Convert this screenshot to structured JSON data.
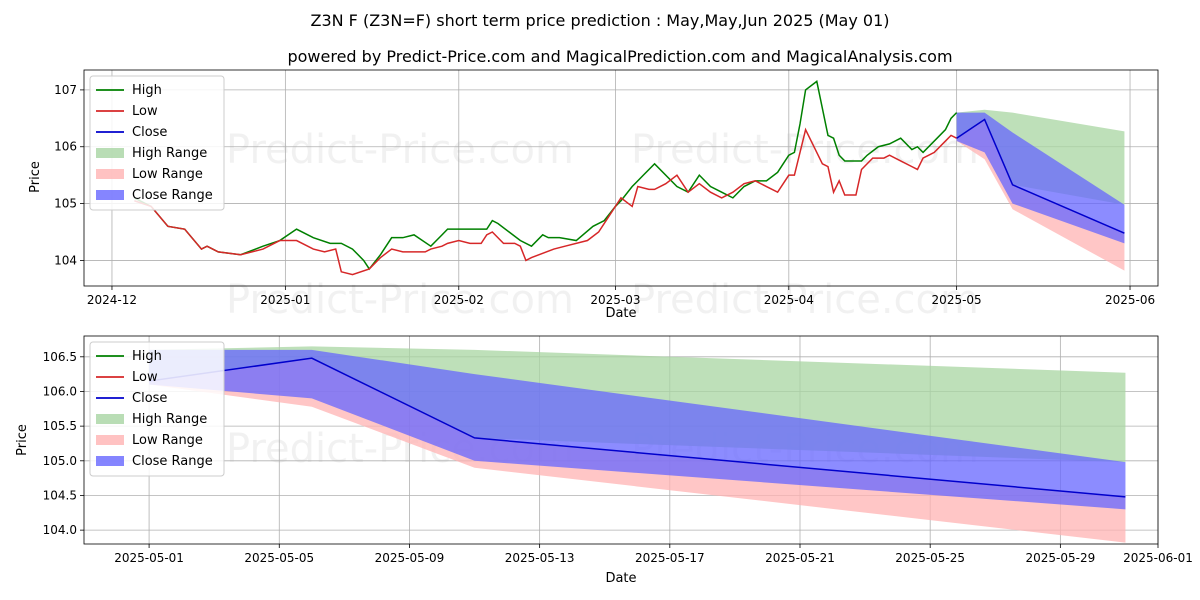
{
  "title": "Z3N F (Z3N=F) short term price prediction : May,May,Jun 2025 (May 01)",
  "subtitle": "powered by Predict-Price.com and MagicalPrediction.com and MagicalAnalysis.com",
  "watermark": "Predict-Price.com",
  "colors": {
    "high": "#008000",
    "low": "#d62728",
    "close": "#0000cc",
    "high_range": "#a8d5a2",
    "low_range": "#ffb3b3",
    "close_range": "#6666ff"
  },
  "chart_data": [
    {
      "type": "line",
      "xlabel": "Date",
      "ylabel": "Price",
      "xlim": [
        "2024-11-26",
        "2025-06-06"
      ],
      "ylim": [
        103.55,
        107.35
      ],
      "x_ticks": [
        "2024-12-01",
        "2025-01-01",
        "2025-02-01",
        "2025-03-01",
        "2025-04-01",
        "2025-05-01",
        "2025-06-01"
      ],
      "x_tick_labels": [
        "2024-12",
        "2025-01",
        "2025-02",
        "2025-03",
        "2025-04",
        "2025-05",
        "2025-06"
      ],
      "y_ticks": [
        104,
        105,
        106,
        107
      ],
      "y_tick_labels": [
        "104",
        "105",
        "106",
        "107"
      ],
      "grid": true,
      "legend_position": "top-left",
      "legend": [
        "High",
        "Low",
        "Close",
        "High Range",
        "Low Range",
        "Close Range"
      ],
      "series": [
        {
          "name": "High",
          "x": [
            "2024-12-05",
            "2024-12-08",
            "2024-12-11",
            "2024-12-14",
            "2024-12-17",
            "2024-12-18",
            "2024-12-19",
            "2024-12-20",
            "2024-12-24",
            "2024-12-28",
            "2024-12-31",
            "2025-01-03",
            "2025-01-06",
            "2025-01-09",
            "2025-01-11",
            "2025-01-13",
            "2025-01-15",
            "2025-01-16",
            "2025-01-18",
            "2025-01-20",
            "2025-01-22",
            "2025-01-24",
            "2025-01-27",
            "2025-01-29",
            "2025-01-30",
            "2025-01-31",
            "2025-02-02",
            "2025-02-04",
            "2025-02-06",
            "2025-02-07",
            "2025-02-08",
            "2025-02-10",
            "2025-02-12",
            "2025-02-14",
            "2025-02-16",
            "2025-02-17",
            "2025-02-19",
            "2025-02-22",
            "2025-02-25",
            "2025-02-27",
            "2025-03-01",
            "2025-03-02",
            "2025-03-04",
            "2025-03-06",
            "2025-03-08",
            "2025-03-12",
            "2025-03-14",
            "2025-03-16",
            "2025-03-18",
            "2025-03-20",
            "2025-03-22",
            "2025-03-24",
            "2025-03-26",
            "2025-03-28",
            "2025-03-30",
            "2025-04-01",
            "2025-04-02",
            "2025-04-03",
            "2025-04-04",
            "2025-04-06",
            "2025-04-08",
            "2025-04-09",
            "2025-04-10",
            "2025-04-11",
            "2025-04-12",
            "2025-04-14",
            "2025-04-15",
            "2025-04-17",
            "2025-04-19",
            "2025-04-21",
            "2025-04-23",
            "2025-04-24",
            "2025-04-25",
            "2025-04-27",
            "2025-04-29",
            "2025-04-30",
            "2025-05-01"
          ],
          "y": [
            105.1,
            104.95,
            104.6,
            104.55,
            104.2,
            104.25,
            104.2,
            104.15,
            104.1,
            104.25,
            104.35,
            104.55,
            104.4,
            104.3,
            104.3,
            104.2,
            104.0,
            103.85,
            104.1,
            104.4,
            104.4,
            104.45,
            104.25,
            104.45,
            104.55,
            104.55,
            104.55,
            104.55,
            104.55,
            104.7,
            104.65,
            104.5,
            104.35,
            104.25,
            104.45,
            104.4,
            104.4,
            104.35,
            104.6,
            104.7,
            104.95,
            105.05,
            105.3,
            105.5,
            105.7,
            105.3,
            105.2,
            105.5,
            105.3,
            105.2,
            105.1,
            105.3,
            105.4,
            105.4,
            105.55,
            105.85,
            105.9,
            106.4,
            107.0,
            107.15,
            106.2,
            106.15,
            105.85,
            105.75,
            105.75,
            105.75,
            105.85,
            106.0,
            106.05,
            106.15,
            105.95,
            106.0,
            105.9,
            106.1,
            106.3,
            106.5,
            106.6
          ]
        },
        {
          "name": "Low",
          "x": [
            "2024-12-05",
            "2024-12-08",
            "2024-12-11",
            "2024-12-14",
            "2024-12-17",
            "2024-12-18",
            "2024-12-19",
            "2024-12-20",
            "2024-12-24",
            "2024-12-28",
            "2024-12-31",
            "2025-01-03",
            "2025-01-06",
            "2025-01-08",
            "2025-01-10",
            "2025-01-11",
            "2025-01-13",
            "2025-01-16",
            "2025-01-18",
            "2025-01-20",
            "2025-01-22",
            "2025-01-24",
            "2025-01-26",
            "2025-01-27",
            "2025-01-29",
            "2025-01-30",
            "2025-02-01",
            "2025-02-03",
            "2025-02-05",
            "2025-02-06",
            "2025-02-07",
            "2025-02-09",
            "2025-02-11",
            "2025-02-12",
            "2025-02-13",
            "2025-02-14",
            "2025-02-18",
            "2025-02-20",
            "2025-02-24",
            "2025-02-26",
            "2025-02-28",
            "2025-03-02",
            "2025-03-04",
            "2025-03-05",
            "2025-03-07",
            "2025-03-08",
            "2025-03-10",
            "2025-03-12",
            "2025-03-14",
            "2025-03-16",
            "2025-03-18",
            "2025-03-20",
            "2025-03-22",
            "2025-03-24",
            "2025-03-26",
            "2025-03-28",
            "2025-03-30",
            "2025-04-01",
            "2025-04-02",
            "2025-04-04",
            "2025-04-07",
            "2025-04-08",
            "2025-04-09",
            "2025-04-10",
            "2025-04-11",
            "2025-04-13",
            "2025-04-14",
            "2025-04-16",
            "2025-04-18",
            "2025-04-19",
            "2025-04-21",
            "2025-04-23",
            "2025-04-24",
            "2025-04-25",
            "2025-04-27",
            "2025-04-29",
            "2025-04-30",
            "2025-05-01"
          ],
          "y": [
            105.05,
            104.95,
            104.6,
            104.55,
            104.2,
            104.25,
            104.2,
            104.15,
            104.1,
            104.2,
            104.35,
            104.35,
            104.2,
            104.15,
            104.2,
            103.8,
            103.75,
            103.85,
            104.05,
            104.2,
            104.15,
            104.15,
            104.15,
            104.2,
            104.25,
            104.3,
            104.35,
            104.3,
            104.3,
            104.45,
            104.5,
            104.3,
            104.3,
            104.25,
            104.0,
            104.05,
            104.2,
            104.25,
            104.35,
            104.5,
            104.8,
            105.1,
            104.95,
            105.3,
            105.25,
            105.25,
            105.35,
            105.5,
            105.2,
            105.35,
            105.2,
            105.1,
            105.2,
            105.35,
            105.4,
            105.3,
            105.2,
            105.5,
            105.5,
            106.3,
            105.7,
            105.65,
            105.2,
            105.4,
            105.15,
            105.15,
            105.6,
            105.8,
            105.8,
            105.85,
            105.75,
            105.65,
            105.6,
            105.8,
            105.9,
            106.1,
            106.2,
            106.15
          ]
        }
      ],
      "forecast": {
        "x": [
          "2025-05-01",
          "2025-05-06",
          "2025-05-11",
          "2025-05-31"
        ],
        "close": [
          106.15,
          106.48,
          105.33,
          104.48
        ],
        "high_range_upper": [
          106.6,
          106.65,
          106.6,
          106.27
        ],
        "high_range_lower": [
          106.15,
          106.48,
          105.33,
          104.98
        ],
        "low_range_upper": [
          106.15,
          106.48,
          105.33,
          104.48
        ],
        "low_range_lower": [
          106.1,
          105.78,
          104.9,
          103.82
        ],
        "close_range_upper": [
          106.6,
          106.6,
          106.25,
          104.98
        ],
        "close_range_lower": [
          106.1,
          105.9,
          105.0,
          104.3
        ]
      }
    },
    {
      "type": "line",
      "xlabel": "Date",
      "ylabel": "Price",
      "xlim": [
        "2025-04-29",
        "2025-06-01"
      ],
      "ylim": [
        103.8,
        106.8
      ],
      "x_ticks": [
        "2025-05-01",
        "2025-05-05",
        "2025-05-09",
        "2025-05-13",
        "2025-05-17",
        "2025-05-21",
        "2025-05-25",
        "2025-05-29",
        "2025-06-01"
      ],
      "x_tick_labels": [
        "2025-05-01",
        "2025-05-05",
        "2025-05-09",
        "2025-05-13",
        "2025-05-17",
        "2025-05-21",
        "2025-05-25",
        "2025-05-29",
        "2025-06-01"
      ],
      "y_ticks": [
        104.0,
        104.5,
        105.0,
        105.5,
        106.0,
        106.5
      ],
      "y_tick_labels": [
        "104.0",
        "104.5",
        "105.0",
        "105.5",
        "106.0",
        "106.5"
      ],
      "grid": true,
      "legend_position": "top-left",
      "legend": [
        "High",
        "Low",
        "Close",
        "High Range",
        "Low Range",
        "Close Range"
      ]
    }
  ]
}
